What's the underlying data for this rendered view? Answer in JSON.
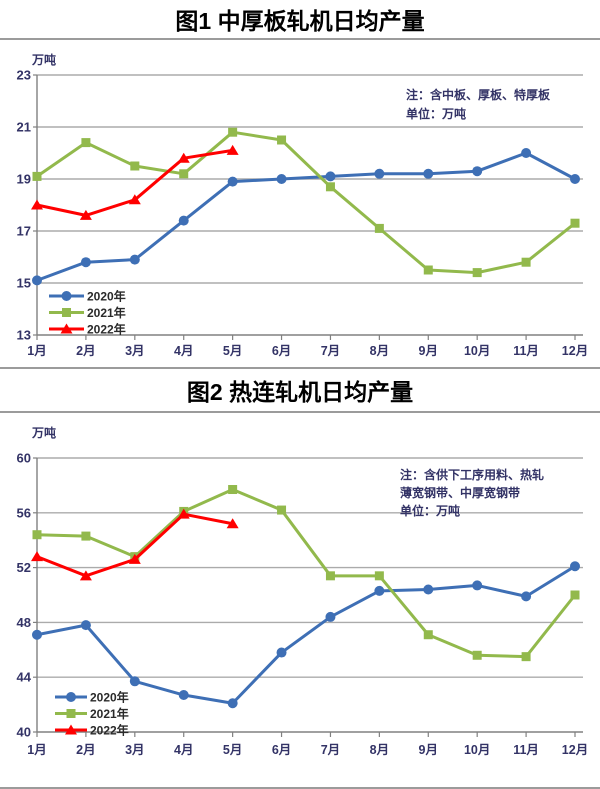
{
  "chart_data": [
    {
      "type": "line",
      "title": "图1 中厚板轧机日均产量",
      "ylabel": "万吨",
      "note_lines": [
        "注：含中板、厚板、特厚板",
        "单位：万吨"
      ],
      "categories": [
        "1月",
        "2月",
        "3月",
        "4月",
        "5月",
        "6月",
        "7月",
        "8月",
        "9月",
        "10月",
        "11月",
        "12月"
      ],
      "ylim": [
        13,
        23
      ],
      "yticks": [
        13,
        15,
        17,
        19,
        21,
        23
      ],
      "grid": true,
      "legend_position": "bottom-left-inside",
      "series": [
        {
          "name": "2020年",
          "marker": "circle",
          "color": "#3E6FB5",
          "values": [
            15.1,
            15.8,
            15.9,
            17.4,
            18.9,
            19.0,
            19.1,
            19.2,
            19.2,
            19.3,
            20.0,
            19.0
          ]
        },
        {
          "name": "2021年",
          "marker": "square",
          "color": "#92B94C",
          "values": [
            19.1,
            20.4,
            19.5,
            19.2,
            20.8,
            20.5,
            18.7,
            17.1,
            15.5,
            15.4,
            15.8,
            17.3
          ]
        },
        {
          "name": "2022年",
          "marker": "triangle",
          "color": "#FF0000",
          "values": [
            18.0,
            17.6,
            18.2,
            19.8,
            20.1
          ]
        }
      ]
    },
    {
      "type": "line",
      "title": "图2 热连轧机日均产量",
      "ylabel": "万吨",
      "note_lines": [
        "注：含供下工序用料、热轧",
        "薄宽钢带、中厚宽钢带",
        "单位：万吨"
      ],
      "categories": [
        "1月",
        "2月",
        "3月",
        "4月",
        "5月",
        "6月",
        "7月",
        "8月",
        "9月",
        "10月",
        "11月",
        "12月"
      ],
      "ylim": [
        40,
        60
      ],
      "yticks": [
        40,
        44,
        48,
        52,
        56,
        60
      ],
      "grid": true,
      "legend_position": "bottom-left-inside",
      "series": [
        {
          "name": "2020年",
          "marker": "circle",
          "color": "#3E6FB5",
          "values": [
            47.1,
            47.8,
            43.7,
            42.7,
            42.1,
            45.8,
            48.4,
            50.3,
            50.4,
            50.7,
            49.9,
            52.1
          ]
        },
        {
          "name": "2021年",
          "marker": "square",
          "color": "#92B94C",
          "values": [
            54.4,
            54.3,
            52.8,
            56.1,
            57.7,
            56.2,
            51.4,
            51.4,
            47.1,
            45.6,
            45.5,
            50.0
          ]
        },
        {
          "name": "2022年",
          "marker": "triangle",
          "color": "#FF0000",
          "values": [
            52.8,
            51.4,
            52.6,
            55.9,
            55.2
          ]
        }
      ]
    }
  ],
  "colors": {
    "divider": "#9B9B9B",
    "axis": "#808080",
    "grid": "#ABABAB",
    "label": "#333366"
  }
}
